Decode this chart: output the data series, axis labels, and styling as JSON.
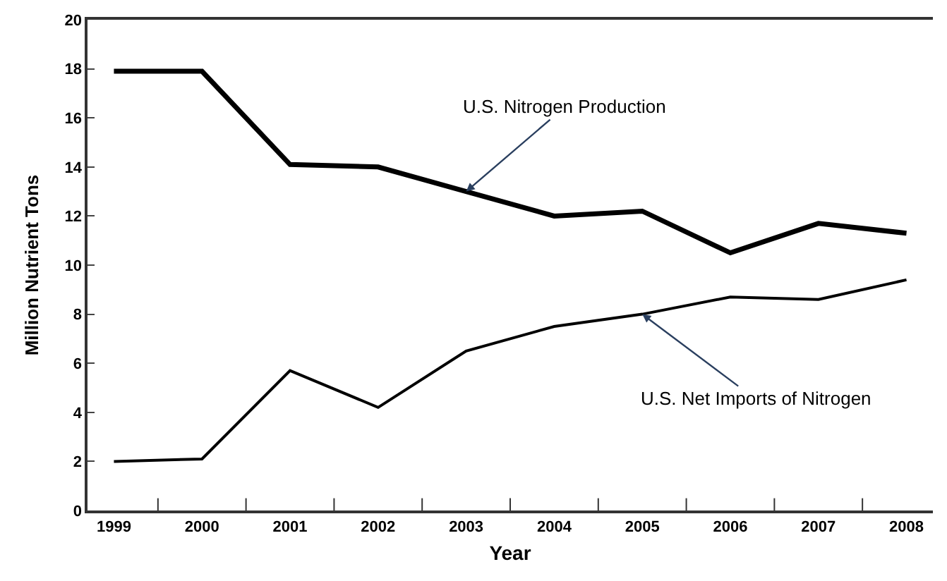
{
  "chart_data": {
    "type": "line",
    "xlabel": "Year",
    "ylabel": "Million Nutrient Tons",
    "categories": [
      "1999",
      "2000",
      "2001",
      "2002",
      "2003",
      "2004",
      "2005",
      "2006",
      "2007",
      "2008"
    ],
    "series": [
      {
        "color": "#000000",
        "values": [
          17.9,
          17.9,
          14.1,
          14.0,
          13.0,
          12.0,
          12.2,
          10.5,
          11.7,
          11.3
        ]
      },
      {
        "color": "#000000",
        "values": [
          2.0,
          2.1,
          5.7,
          4.2,
          6.5,
          7.5,
          8.0,
          8.7,
          8.6,
          9.4
        ]
      }
    ],
    "annotations": [
      {
        "text": "U.S. Nitrogen Production",
        "x": "2003",
        "y": 13.0
      },
      {
        "text": "U.S. Net Imports of Nitrogen",
        "x": "2005",
        "y": 8.0
      }
    ],
    "ylim": [
      0,
      20
    ],
    "yticks": [
      0,
      2,
      4,
      6,
      8,
      10,
      12,
      14,
      16,
      18,
      20
    ],
    "marker": "none",
    "line_style": "solid"
  }
}
